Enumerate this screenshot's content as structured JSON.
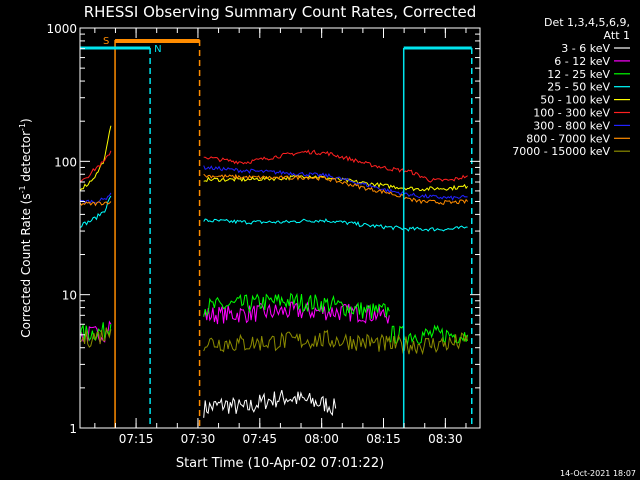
{
  "chart_data": {
    "type": "line",
    "title": "RHESSI Observing Summary Count Rates, Corrected",
    "xlabel": "Start Time (10-Apr-02 07:01:22)",
    "ylabel_main": "Corrected Count Rate (s",
    "ylabel_sup1": "-1",
    "ylabel_mid": " detector",
    "ylabel_sup2": "-1",
    "ylabel_end": ")",
    "x_range_minutes": [
      0,
      97
    ],
    "ylim": [
      1,
      1000
    ],
    "yscale": "log",
    "ytick_labels": [
      {
        "value": 1,
        "label": "1"
      },
      {
        "value": 10,
        "label": "10"
      },
      {
        "value": 100,
        "label": "100"
      },
      {
        "value": 1000,
        "label": "1000"
      }
    ],
    "xtick_labels": [
      {
        "minute": 13.6,
        "label": "07:15"
      },
      {
        "minute": 28.6,
        "label": "07:30"
      },
      {
        "minute": 43.6,
        "label": "07:45"
      },
      {
        "minute": 58.6,
        "label": "08:00"
      },
      {
        "minute": 73.6,
        "label": "08:15"
      },
      {
        "minute": 88.6,
        "label": "08:30"
      }
    ],
    "legend_header": [
      "Det 1,3,4,5,6,9,",
      "Att 1"
    ],
    "legend_placement": "right",
    "series": [
      {
        "name": "3 - 6 keV",
        "color": "#ffffff",
        "segments": [
          {
            "x": [
              30,
              35,
              40,
              45,
              50,
              55,
              60,
              62
            ],
            "y": [
              1.4,
              1.5,
              1.4,
              1.6,
              1.7,
              1.6,
              1.5,
              1.4
            ]
          }
        ]
      },
      {
        "name": "6 - 12 keV",
        "color": "#ff00ff",
        "segments": [
          {
            "x": [
              0,
              3,
              6,
              7.5
            ],
            "y": [
              5,
              5,
              5.2,
              6
            ]
          },
          {
            "x": [
              30,
              40,
              50,
              60,
              70,
              75
            ],
            "y": [
              7,
              7.2,
              7.5,
              7.5,
              7.2,
              7
            ]
          }
        ]
      },
      {
        "name": "12 - 25 keV",
        "color": "#00ff00",
        "segments": [
          {
            "x": [
              0,
              3,
              6,
              7.5
            ],
            "y": [
              5,
              5.2,
              5.3,
              6
            ]
          },
          {
            "x": [
              30,
              40,
              50,
              60,
              70,
              75
            ],
            "y": [
              8,
              8.5,
              9,
              8.5,
              7.5,
              7.5
            ]
          },
          {
            "x": [
              75,
              82,
              90,
              94
            ],
            "y": [
              5,
              5,
              5,
              5
            ]
          }
        ]
      },
      {
        "name": "25 - 50 keV",
        "color": "#00ffff",
        "segments": [
          {
            "x": [
              0,
              2,
              4,
              6,
              7.5
            ],
            "y": [
              33,
              35,
              38,
              43,
              55
            ]
          },
          {
            "x": [
              30,
              40,
              50,
              55,
              60,
              70,
              80,
              90,
              94
            ],
            "y": [
              36,
              35,
              35,
              36,
              36,
              33,
              31,
              31,
              32
            ]
          }
        ]
      },
      {
        "name": "50 - 100 keV",
        "color": "#ffff00",
        "segments": [
          {
            "x": [
              0,
              2,
              4,
              6,
              7.5
            ],
            "y": [
              62,
              68,
              80,
              105,
              185
            ]
          },
          {
            "x": [
              30,
              40,
              50,
              55,
              60,
              70,
              75,
              82,
              90,
              94
            ],
            "y": [
              73,
              73,
              75,
              78,
              75,
              68,
              65,
              62,
              63,
              65
            ]
          }
        ]
      },
      {
        "name": "100 - 300 keV",
        "color": "#ff2020",
        "segments": [
          {
            "x": [
              0,
              2,
              4,
              6,
              7.5
            ],
            "y": [
              72,
              78,
              90,
              100,
              120
            ]
          },
          {
            "x": [
              30,
              35,
              40,
              45,
              50,
              55,
              60,
              65,
              70,
              75,
              80,
              85,
              90,
              94
            ],
            "y": [
              108,
              102,
              98,
              105,
              112,
              118,
              115,
              105,
              95,
              88,
              84,
              72,
              72,
              78
            ]
          }
        ]
      },
      {
        "name": "300 - 800 keV",
        "color": "#2222ff",
        "segments": [
          {
            "x": [
              0,
              2,
              4,
              6,
              7.5
            ],
            "y": [
              50,
              50,
              50,
              52,
              58
            ]
          },
          {
            "x": [
              30,
              40,
              50,
              55,
              60,
              70,
              75,
              82,
              90,
              94
            ],
            "y": [
              90,
              85,
              82,
              80,
              78,
              66,
              60,
              55,
              53,
              54
            ]
          }
        ]
      },
      {
        "name": "800 - 7000 keV",
        "color": "#ff8c00",
        "segments": [
          {
            "x": [
              0,
              3,
              6,
              7.5
            ],
            "y": [
              48,
              48,
              49,
              50
            ]
          },
          {
            "x": [
              30,
              40,
              50,
              55,
              60,
              70,
              75,
              82,
              90,
              94
            ],
            "y": [
              78,
              76,
              75,
              76,
              74,
              62,
              58,
              50,
              49,
              50
            ]
          }
        ]
      },
      {
        "name": "7000 - 15000 keV",
        "color": "#8b8b00",
        "segments": [
          {
            "x": [
              0,
              3,
              6,
              7.5
            ],
            "y": [
              4.5,
              4.8,
              5,
              5.5
            ]
          },
          {
            "x": [
              30,
              40,
              50,
              60,
              70,
              75,
              82,
              90,
              94
            ],
            "y": [
              4.4,
              4.3,
              4.5,
              4.6,
              4.4,
              4.2,
              4.2,
              4.3,
              4.5
            ]
          }
        ]
      }
    ],
    "annotations": {
      "s_label": "S",
      "n_label": "N",
      "orange_bar_x": [
        8.5,
        29
      ],
      "orange_line_x": 8.5,
      "orange_dashed_x": 29,
      "cyan_bar1_x": [
        0,
        17
      ],
      "cyan_dashed1_x": 17,
      "cyan_solid_x": 78.5,
      "cyan_bar2_x": [
        78.5,
        95
      ],
      "cyan_dashed2_x": 95
    },
    "timestamp": "14-Oct-2021 18:07"
  }
}
